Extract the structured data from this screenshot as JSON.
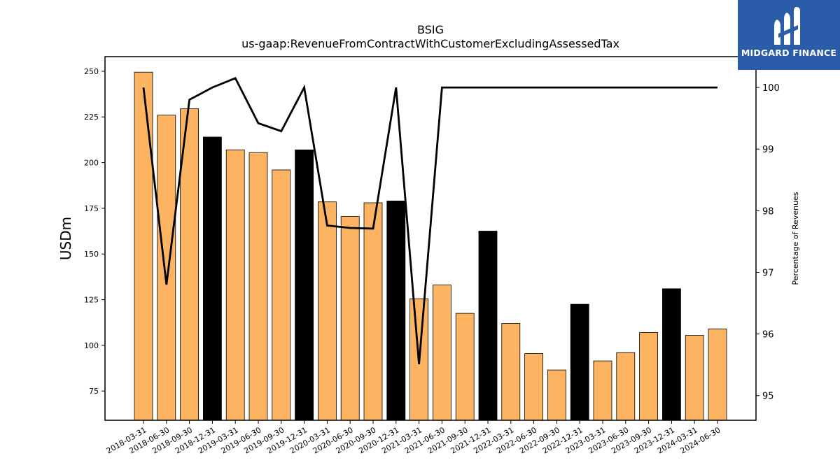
{
  "logo": {
    "text": "MIDGARD FINANCE",
    "background": "#2a5caa"
  },
  "chart_data": {
    "type": "bar",
    "title": "BSIG",
    "subtitle": "us-gaap:RevenueFromContractWithCustomerExcludingAssessedTax",
    "ylabel": "USDm",
    "y2label": "Percentage of Revenues",
    "ylim": [
      59,
      258
    ],
    "y2lim": [
      94.6,
      100.5
    ],
    "yticks": [
      75,
      100,
      125,
      150,
      175,
      200,
      225,
      250
    ],
    "y2ticks": [
      95,
      96,
      97,
      98,
      99,
      100
    ],
    "grid": false,
    "legend": "none",
    "colors": {
      "quarter": "#fdb462",
      "year_end": "#000000",
      "line": "#000000"
    },
    "categories": [
      "2018-03-31",
      "2018-06-30",
      "2018-09-30",
      "2018-12-31",
      "2019-03-31",
      "2019-06-30",
      "2019-09-30",
      "2019-12-31",
      "2020-03-31",
      "2020-06-30",
      "2020-09-30",
      "2020-12-31",
      "2021-03-31",
      "2021-06-30",
      "2021-09-30",
      "2021-12-31",
      "2022-03-31",
      "2022-06-30",
      "2022-09-30",
      "2022-12-31",
      "2023-03-31",
      "2023-06-30",
      "2023-09-30",
      "2023-12-31",
      "2024-03-31",
      "2024-06-30"
    ],
    "series": [
      {
        "type": "bar",
        "values": [
          249.5,
          226,
          229.5,
          214,
          207,
          205.5,
          196,
          207,
          178.5,
          170.5,
          178,
          179,
          125.5,
          133,
          117.5,
          162.5,
          112,
          95.5,
          86.5,
          122.5,
          91.5,
          96,
          107,
          131,
          105.5,
          109
        ],
        "year_end": [
          false,
          false,
          false,
          true,
          false,
          false,
          false,
          true,
          false,
          false,
          false,
          true,
          false,
          false,
          false,
          true,
          false,
          false,
          false,
          true,
          false,
          false,
          false,
          true,
          false,
          false
        ]
      },
      {
        "type": "line",
        "axis": "right",
        "values": [
          100.0,
          96.8,
          99.8,
          100.0,
          100.15,
          99.42,
          99.29,
          100.0,
          97.76,
          97.72,
          97.71,
          100.0,
          95.51,
          100.0,
          100.0,
          100.0,
          100.0,
          100.0,
          100.0,
          100.0,
          100.0,
          100.0,
          100.0,
          100.0,
          100.0,
          100.0
        ]
      }
    ]
  }
}
